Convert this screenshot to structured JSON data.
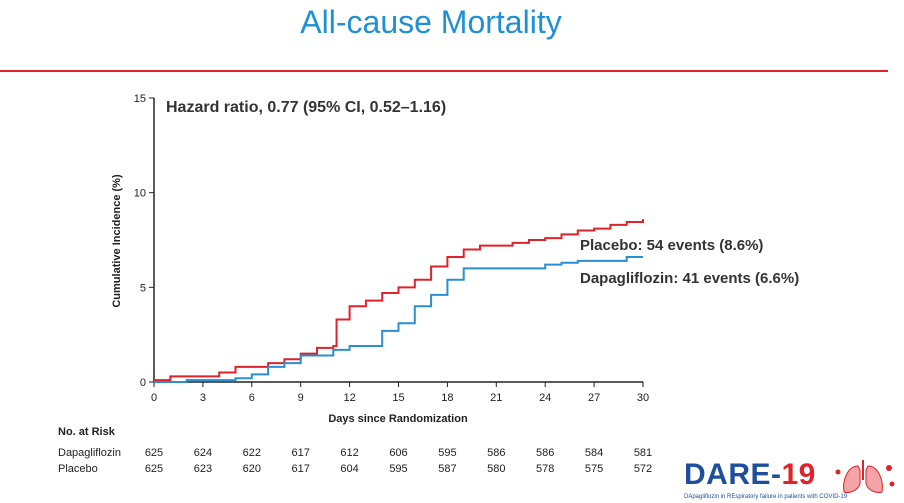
{
  "slide": {
    "title": "All-cause Mortality"
  },
  "chart_data": {
    "type": "line",
    "title": "",
    "annotation": "Hazard ratio, 0.77 (95% CI, 0.52–1.16)",
    "xlabel": "Days since Randomization",
    "ylabel": "Cumulative Incidence (%)",
    "xlim": [
      0,
      30
    ],
    "ylim": [
      0,
      15
    ],
    "xticks": [
      0,
      3,
      6,
      9,
      12,
      15,
      18,
      21,
      24,
      27,
      30
    ],
    "yticks": [
      0,
      5,
      10,
      15
    ],
    "grid": false,
    "series": [
      {
        "name": "Placebo",
        "label": "Placebo: 54 events (8.6%)",
        "color": "#e0222a",
        "steps": [
          [
            0,
            0.1
          ],
          [
            1,
            0.3
          ],
          [
            4,
            0.5
          ],
          [
            5,
            0.8
          ],
          [
            7,
            1.0
          ],
          [
            8,
            1.2
          ],
          [
            9,
            1.5
          ],
          [
            10,
            1.8
          ],
          [
            11,
            1.9
          ],
          [
            11.2,
            3.3
          ],
          [
            12,
            4.0
          ],
          [
            13,
            4.3
          ],
          [
            14,
            4.7
          ],
          [
            15,
            5.0
          ],
          [
            16,
            5.4
          ],
          [
            17,
            6.1
          ],
          [
            18,
            6.6
          ],
          [
            19,
            7.0
          ],
          [
            20,
            7.2
          ],
          [
            22,
            7.35
          ],
          [
            23,
            7.5
          ],
          [
            24,
            7.6
          ],
          [
            25,
            7.8
          ],
          [
            26,
            8.0
          ],
          [
            27,
            8.1
          ],
          [
            28,
            8.3
          ],
          [
            29,
            8.45
          ],
          [
            30,
            8.6
          ]
        ]
      },
      {
        "name": "Dapagliflozin",
        "label": "Dapagliflozin: 41 events (6.6%)",
        "color": "#2a8fd1",
        "steps": [
          [
            0,
            0.0
          ],
          [
            2,
            0.1
          ],
          [
            5,
            0.2
          ],
          [
            6,
            0.4
          ],
          [
            7,
            0.8
          ],
          [
            8,
            1.0
          ],
          [
            9,
            1.4
          ],
          [
            11,
            1.7
          ],
          [
            12,
            1.9
          ],
          [
            14,
            2.4
          ],
          [
            14,
            2.7
          ],
          [
            15,
            3.1
          ],
          [
            16,
            4.0
          ],
          [
            17,
            4.6
          ],
          [
            18,
            5.4
          ],
          [
            19,
            6.0
          ],
          [
            24,
            6.2
          ],
          [
            25,
            6.3
          ],
          [
            26,
            6.4
          ],
          [
            29,
            6.6
          ],
          [
            30,
            6.6
          ]
        ]
      }
    ]
  },
  "risk_table": {
    "header": "No. at Risk",
    "rows": [
      {
        "label": "Dapagliflozin",
        "values": [
          "625",
          "624",
          "622",
          "617",
          "612",
          "606",
          "595",
          "586",
          "586",
          "584",
          "581"
        ]
      },
      {
        "label": "Placebo",
        "values": [
          "625",
          "623",
          "620",
          "617",
          "604",
          "595",
          "587",
          "580",
          "578",
          "575",
          "572"
        ]
      }
    ]
  },
  "logo": {
    "name": "DARE-",
    "number": "19",
    "tagline": "DApagliflozin in REspiratory failure in patients with COVID-19"
  }
}
